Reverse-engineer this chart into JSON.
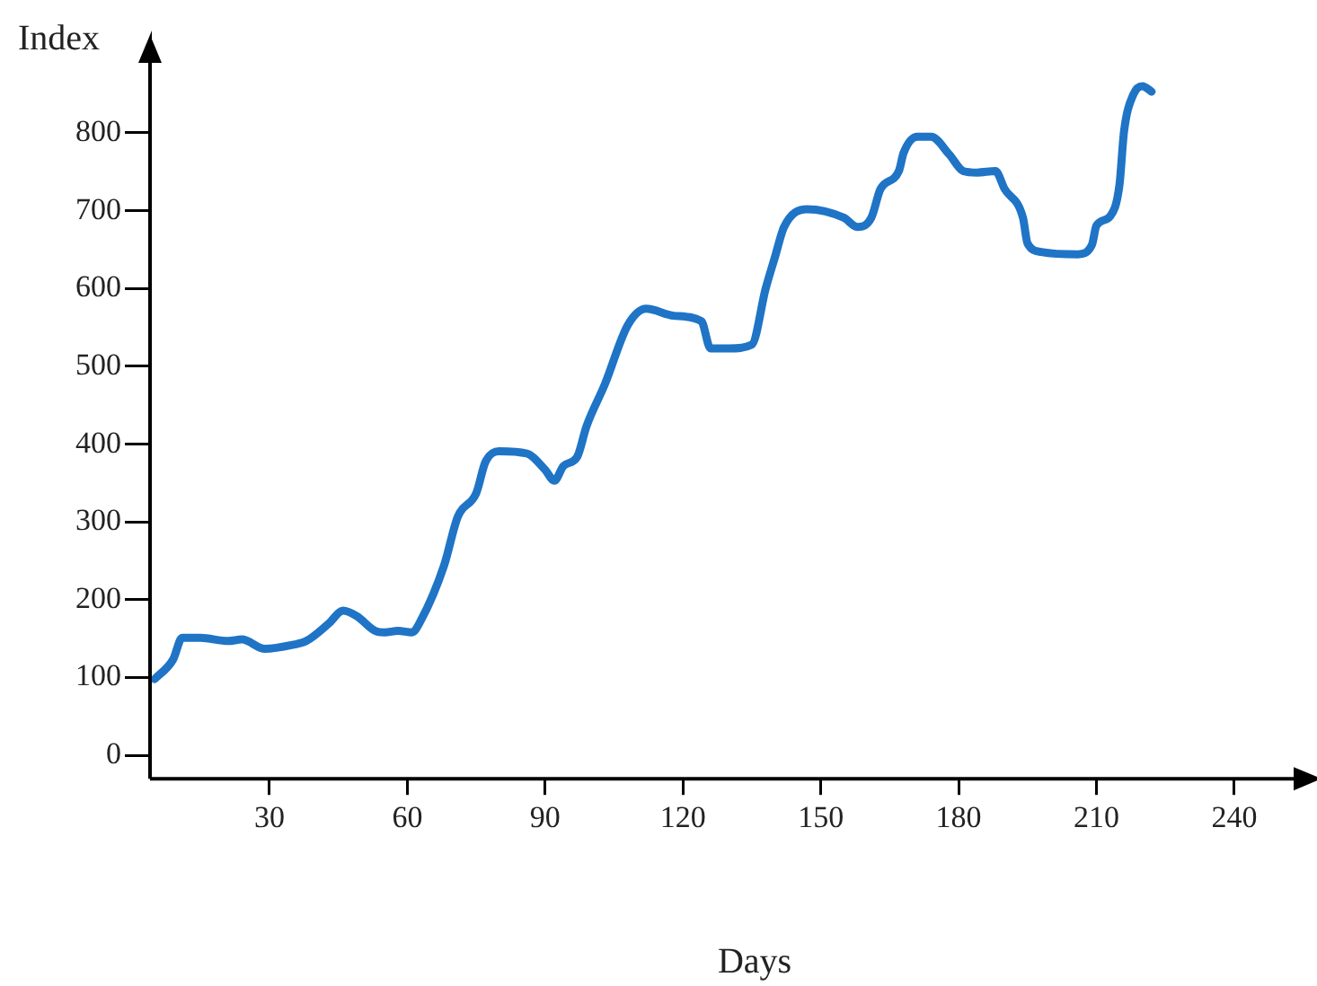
{
  "chart_data": {
    "type": "line",
    "xlabel": "Days",
    "ylabel": "Index",
    "xlim": [
      4,
      258
    ],
    "xticks": [
      30,
      60,
      90,
      120,
      150,
      180,
      210,
      240
    ],
    "ylim": [
      -30,
      920
    ],
    "yticks": [
      0,
      100,
      200,
      300,
      400,
      500,
      600,
      700,
      800
    ],
    "marker": "none",
    "line_style": "solid",
    "series": [
      {
        "color": "#1f74c6",
        "x": [
          5,
          9,
          11,
          15,
          21,
          24,
          29,
          35,
          38,
          43,
          46,
          49,
          53,
          55,
          58,
          61,
          63,
          68,
          71,
          75,
          77,
          80,
          86,
          90,
          92,
          94,
          97,
          99,
          103,
          108,
          112,
          118,
          124,
          126,
          130,
          135,
          138,
          140,
          142,
          147,
          155,
          158,
          161,
          163,
          167,
          168,
          171,
          174,
          178,
          181,
          184,
          188,
          190,
          194,
          195,
          198,
          206,
          209,
          210,
          213,
          215,
          216,
          218,
          220,
          222
        ],
        "values": [
          98,
          123,
          151,
          151,
          147,
          149,
          137,
          142,
          147,
          170,
          186,
          179,
          160,
          158,
          160,
          158,
          174,
          244,
          307,
          337,
          377,
          391,
          388,
          367,
          353,
          372,
          384,
          423,
          477,
          553,
          574,
          565,
          558,
          523,
          523,
          528,
          600,
          640,
          679,
          702,
          691,
          679,
          691,
          728,
          751,
          774,
          795,
          795,
          772,
          751,
          749,
          751,
          728,
          691,
          658,
          647,
          644,
          656,
          681,
          693,
          733,
          802,
          849,
          860,
          853
        ]
      }
    ]
  }
}
